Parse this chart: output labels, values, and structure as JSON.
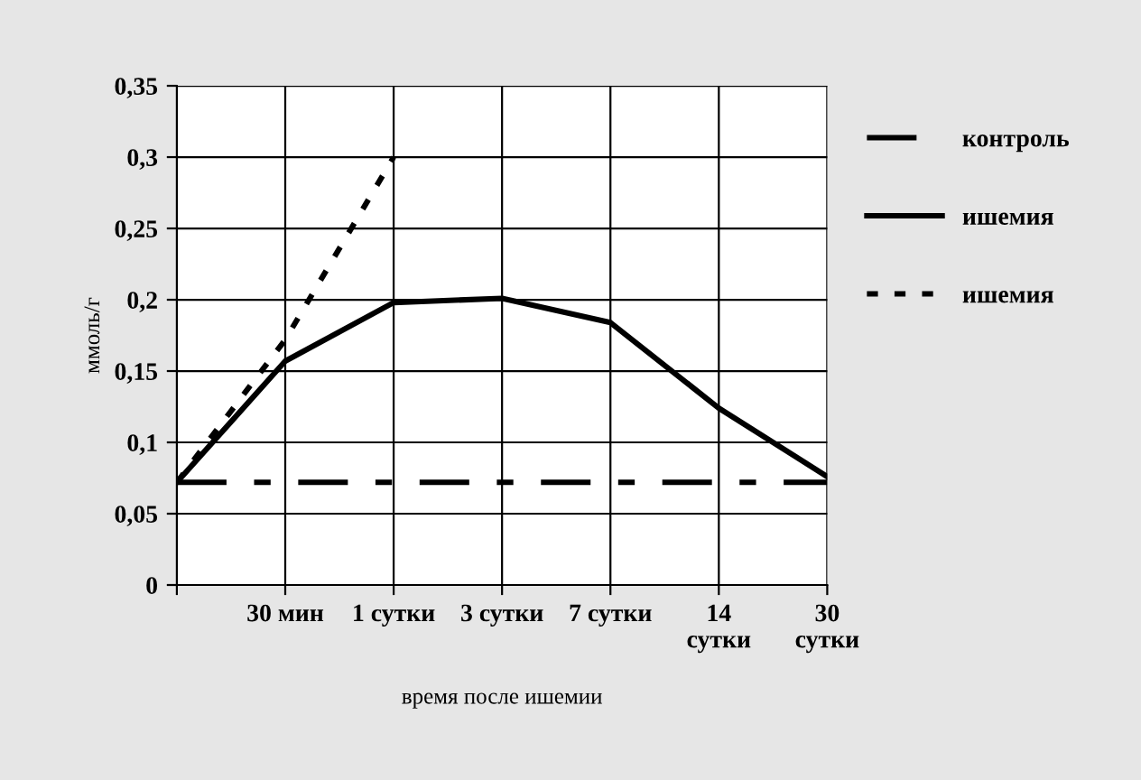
{
  "chart_data": {
    "type": "line",
    "xlabel": "время после ишемии",
    "ylabel": "ммоль/г",
    "categories": [
      null,
      "30 мин",
      "1 сутки",
      "3 сутки",
      "7 сутки",
      "14\nсутки",
      "30\nсутки"
    ],
    "series": [
      {
        "name": "контроль",
        "color": "#000000",
        "line_style": "dashed",
        "values": [
          0.072,
          0.072,
          0.072,
          0.072,
          0.072,
          0.072,
          0.072
        ]
      },
      {
        "name": "ишемия",
        "color": "#000000",
        "line_style": "solid",
        "values": [
          0.072,
          0.157,
          0.198,
          0.201,
          0.184,
          0.124,
          0.076
        ]
      },
      {
        "name": "ишемия",
        "color": "#000000",
        "line_style": "dotted",
        "values": [
          0.072,
          0.172,
          0.3,
          null,
          null,
          null,
          null
        ]
      }
    ],
    "ylim": [
      0,
      0.35
    ],
    "yticks": [
      0,
      {
        "value": 0.05,
        "label": "0,05"
      },
      {
        "value": 0.1,
        "label": "0,1"
      },
      {
        "value": 0.15,
        "label": "0,15"
      },
      {
        "value": 0.2,
        "label": "0,2"
      },
      {
        "value": 0.25,
        "label": "0,25"
      },
      {
        "value": 0.3,
        "label": "0,3"
      },
      {
        "value": 0.35,
        "label": "0,35"
      }
    ],
    "grid": true,
    "legend": "right",
    "marker": "none"
  }
}
